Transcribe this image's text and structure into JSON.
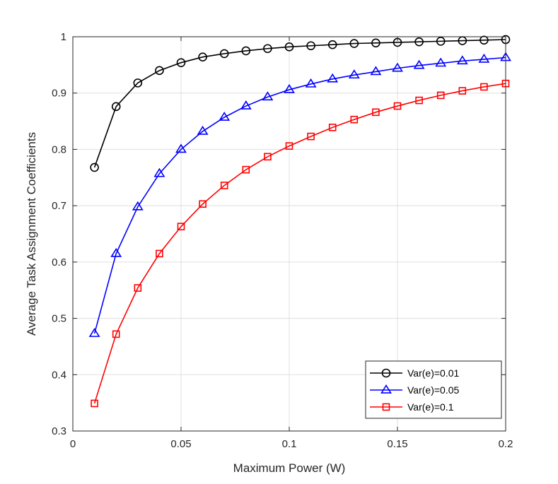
{
  "chart_data": {
    "type": "line",
    "title": "",
    "xlabel": "Maximum Power (W)",
    "ylabel": "Average Task Assignment Coefficients",
    "xlim": [
      0,
      0.2
    ],
    "ylim": [
      0.3,
      1
    ],
    "x_ticks": [
      0,
      0.05,
      0.1,
      0.15,
      0.2
    ],
    "x_tick_labels": [
      "0",
      "0.05",
      "0.1",
      "0.15",
      "0.2"
    ],
    "y_ticks": [
      0.3,
      0.4,
      0.5,
      0.6,
      0.7,
      0.8,
      0.9,
      1
    ],
    "y_tick_labels": [
      "0.3",
      "0.4",
      "0.5",
      "0.6",
      "0.7",
      "0.8",
      "0.9",
      "1"
    ],
    "grid": true,
    "legend_position": "bottom-right",
    "x": [
      0.01,
      0.02,
      0.03,
      0.04,
      0.05,
      0.06,
      0.07,
      0.08,
      0.09,
      0.1,
      0.11,
      0.12,
      0.13,
      0.14,
      0.15,
      0.16,
      0.17,
      0.18,
      0.19,
      0.2
    ],
    "series": [
      {
        "name": "Var(e)=0.01",
        "color": "#000000",
        "marker": "circle",
        "values": [
          0.768,
          0.876,
          0.918,
          0.94,
          0.954,
          0.964,
          0.97,
          0.975,
          0.979,
          0.982,
          0.984,
          0.986,
          0.988,
          0.989,
          0.99,
          0.991,
          0.992,
          0.993,
          0.994,
          0.995
        ]
      },
      {
        "name": "Var(e)=0.05",
        "color": "#0000ff",
        "marker": "triangle",
        "values": [
          0.473,
          0.615,
          0.698,
          0.757,
          0.8,
          0.832,
          0.857,
          0.877,
          0.893,
          0.906,
          0.916,
          0.925,
          0.932,
          0.938,
          0.944,
          0.949,
          0.953,
          0.957,
          0.96,
          0.963
        ]
      },
      {
        "name": "Var(e)=0.1",
        "color": "#ff0000",
        "marker": "square",
        "values": [
          0.349,
          0.472,
          0.554,
          0.615,
          0.663,
          0.703,
          0.736,
          0.764,
          0.787,
          0.806,
          0.823,
          0.839,
          0.853,
          0.866,
          0.877,
          0.887,
          0.896,
          0.904,
          0.911,
          0.917
        ]
      }
    ]
  }
}
